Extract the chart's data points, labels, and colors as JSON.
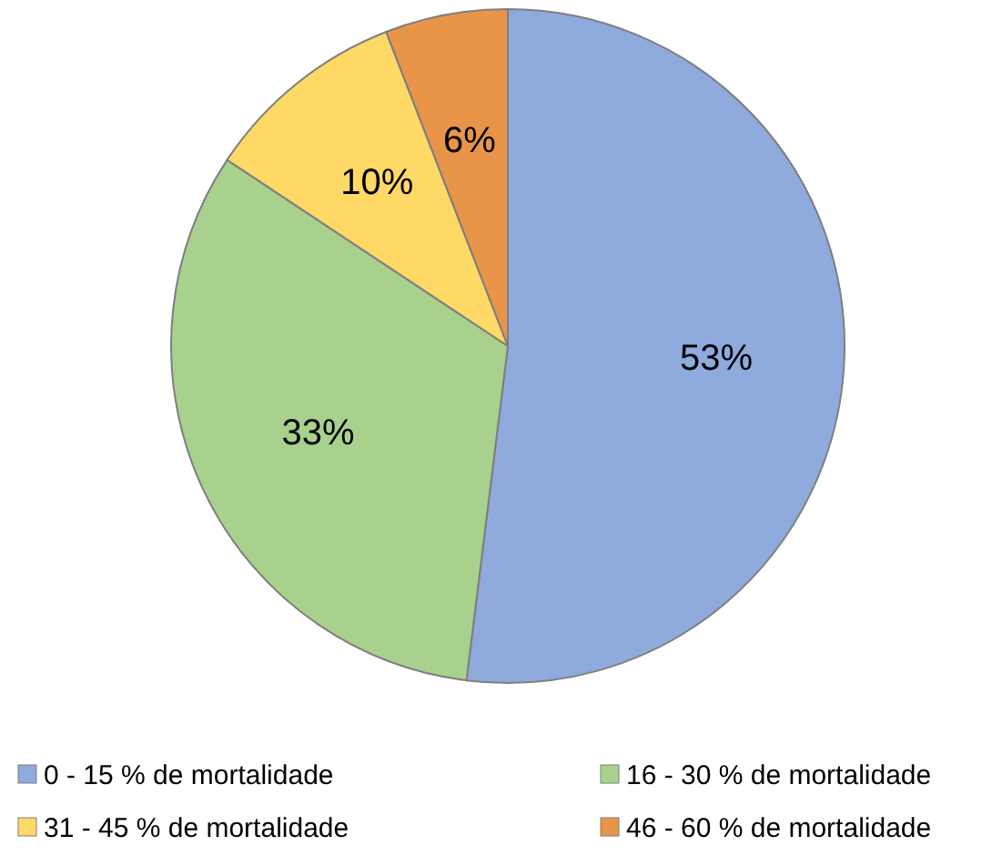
{
  "chart_data": {
    "type": "pie",
    "categories": [
      "0 - 15 % de mortalidade",
      "16 - 30 % de mortalidade",
      "31 - 45 % de mortalidade",
      "46 - 60 % de mortalidade"
    ],
    "values": [
      53,
      33,
      10,
      6
    ],
    "value_labels": [
      "53%",
      "33%",
      "10%",
      "6%"
    ],
    "colors": [
      "#8faadc",
      "#a9d18e",
      "#ffd966",
      "#e8954a"
    ],
    "legend": "bottom"
  }
}
